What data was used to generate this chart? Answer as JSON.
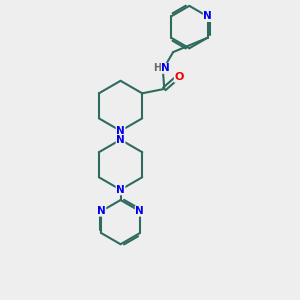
{
  "background_color": "#eeeeee",
  "bond_color": "#2d6b5e",
  "N_color": "#0000ee",
  "O_color": "#ee0000",
  "H_color": "#666666",
  "lw": 1.5,
  "figsize": [
    3.0,
    3.0
  ],
  "dpi": 100,
  "xlim": [
    0,
    10
  ],
  "ylim": [
    0,
    10
  ]
}
